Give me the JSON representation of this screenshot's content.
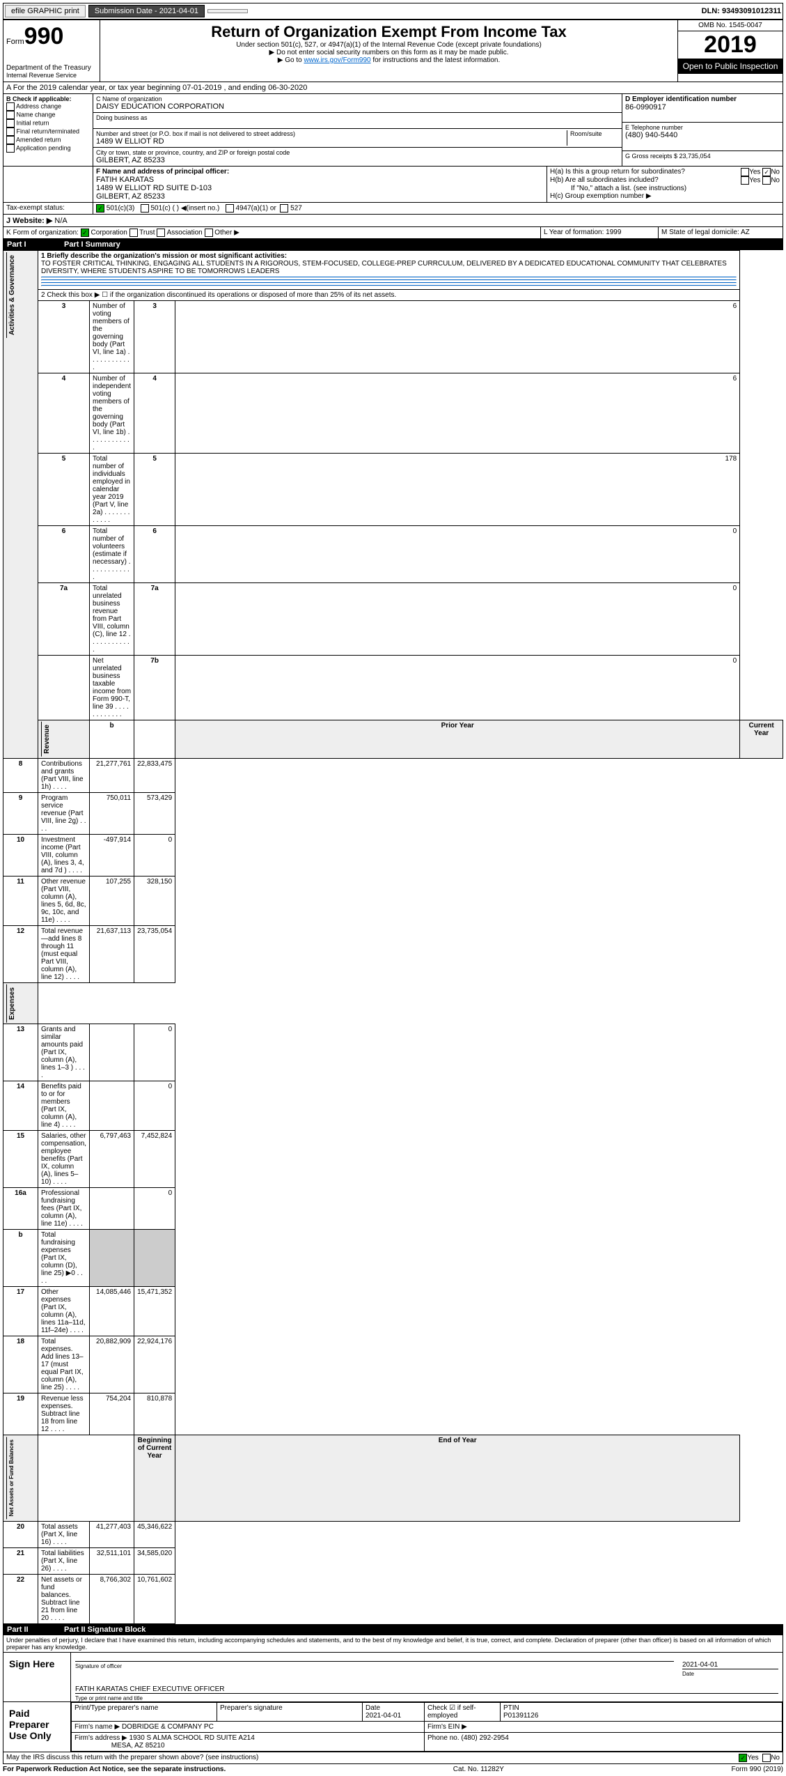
{
  "topbar": {
    "efile": "efile GRAPHIC print",
    "submission": "Submission Date - 2021-04-01",
    "dln": "DLN: 93493091012311"
  },
  "header": {
    "form_small": "Form",
    "form_big": "990",
    "dept1": "Department of the Treasury",
    "dept2": "Internal Revenue Service",
    "title": "Return of Organization Exempt From Income Tax",
    "sub1": "Under section 501(c), 527, or 4947(a)(1) of the Internal Revenue Code (except private foundations)",
    "sub2": "▶ Do not enter social security numbers on this form as it may be made public.",
    "sub3a": "▶ Go to ",
    "sub3_link": "www.irs.gov/Form990",
    "sub3b": " for instructions and the latest information.",
    "omb": "OMB No. 1545-0047",
    "year": "2019",
    "public": "Open to Public Inspection"
  },
  "period": "A For the 2019 calendar year, or tax year beginning 07-01-2019    , and ending 06-30-2020",
  "boxB": {
    "label": "B Check if applicable:",
    "addr": "Address change",
    "name": "Name change",
    "init": "Initial return",
    "final": "Final return/terminated",
    "amend": "Amended return",
    "app": "Application pending"
  },
  "boxC": {
    "label": "C Name of organization",
    "name": "DAISY EDUCATION CORPORATION",
    "dba_label": "Doing business as",
    "addr_label": "Number and street (or P.O. box if mail is not delivered to street address)",
    "addr": "1489 W ELLIOT RD",
    "room_label": "Room/suite",
    "city_label": "City or town, state or province, country, and ZIP or foreign postal code",
    "city": "GILBERT, AZ  85233"
  },
  "boxD": {
    "label": "D Employer identification number",
    "ein": "86-0990917"
  },
  "boxE": {
    "label": "E Telephone number",
    "phone": "(480) 940-5440"
  },
  "boxG": {
    "label": "G Gross receipts $ 23,735,054"
  },
  "boxF": {
    "label": "F  Name and address of principal officer:",
    "name": "FATIH KARATAS",
    "addr1": "1489 W ELLIOT RD SUITE D-103",
    "addr2": "GILBERT, AZ  85233"
  },
  "boxH": {
    "ha": "H(a)  Is this a group return for subordinates?",
    "hb": "H(b)  Are all subordinates included?",
    "hnote": "If \"No,\" attach a list. (see instructions)",
    "hc": "H(c)  Group exemption number ▶",
    "yes": "Yes",
    "no": "No"
  },
  "taxexempt": {
    "label": "Tax-exempt status:",
    "a": "501(c)(3)",
    "b": "501(c) (   ) ◀(insert no.)",
    "c": "4947(a)(1) or",
    "d": "527"
  },
  "boxJ": {
    "label": "J  Website: ▶",
    "val": "N/A"
  },
  "boxK": {
    "label": "K Form of organization:",
    "corp": "Corporation",
    "trust": "Trust",
    "assoc": "Association",
    "other": "Other ▶"
  },
  "boxL": {
    "label": "L Year of formation: 1999"
  },
  "boxM": {
    "label": "M State of legal domicile: AZ"
  },
  "part1": {
    "header": "Part I      Summary",
    "v1": "Activities & Governance",
    "v2": "Revenue",
    "v3": "Expenses",
    "v4": "Net Assets or Fund Balances",
    "l1a": "1  Briefly describe the organization's mission or most significant activities:",
    "l1b": "TO FOSTER CRITICAL THINKING, ENGAGING ALL STUDENTS IN A RIGOROUS, STEM-FOCUSED, COLLEGE-PREP CURRCULUM, DELIVERED BY A DEDICATED EDUCATIONAL COMMUNITY THAT CELEBRATES DIVERSITY, WHERE STUDENTS ASPIRE TO BE TOMORROWS LEADERS",
    "l2": "2   Check this box ▶ ☐  if the organization discontinued its operations or disposed of more than 25% of its net assets.",
    "rows": [
      {
        "n": "3",
        "t": "Number of voting members of the governing body (Part VI, line 1a)",
        "box": "3",
        "v": "6"
      },
      {
        "n": "4",
        "t": "Number of independent voting members of the governing body (Part VI, line 1b)",
        "box": "4",
        "v": "6"
      },
      {
        "n": "5",
        "t": "Total number of individuals employed in calendar year 2019 (Part V, line 2a)",
        "box": "5",
        "v": "178"
      },
      {
        "n": "6",
        "t": "Total number of volunteers (estimate if necessary)",
        "box": "6",
        "v": "0"
      },
      {
        "n": "7a",
        "t": "Total unrelated business revenue from Part VIII, column (C), line 12",
        "box": "7a",
        "v": "0"
      },
      {
        "n": "",
        "t": "Net unrelated business taxable income from Form 990-T, line 39",
        "box": "7b",
        "v": "0"
      }
    ],
    "hb": "b",
    "prior": "Prior Year",
    "current": "Current Year",
    "rev": [
      {
        "n": "8",
        "t": "Contributions and grants (Part VIII, line 1h)",
        "p": "21,277,761",
        "c": "22,833,475"
      },
      {
        "n": "9",
        "t": "Program service revenue (Part VIII, line 2g)",
        "p": "750,011",
        "c": "573,429"
      },
      {
        "n": "10",
        "t": "Investment income (Part VIII, column (A), lines 3, 4, and 7d )",
        "p": "-497,914",
        "c": "0"
      },
      {
        "n": "11",
        "t": "Other revenue (Part VIII, column (A), lines 5, 6d, 8c, 9c, 10c, and 11e)",
        "p": "107,255",
        "c": "328,150"
      },
      {
        "n": "12",
        "t": "Total revenue—add lines 8 through 11 (must equal Part VIII, column (A), line 12)",
        "p": "21,637,113",
        "c": "23,735,054"
      }
    ],
    "exp": [
      {
        "n": "13",
        "t": "Grants and similar amounts paid (Part IX, column (A), lines 1–3 )",
        "p": "",
        "c": "0"
      },
      {
        "n": "14",
        "t": "Benefits paid to or for members (Part IX, column (A), line 4)",
        "p": "",
        "c": "0"
      },
      {
        "n": "15",
        "t": "Salaries, other compensation, employee benefits (Part IX, column (A), lines 5–10)",
        "p": "6,797,463",
        "c": "7,452,824"
      },
      {
        "n": "16a",
        "t": "Professional fundraising fees (Part IX, column (A), line 11e)",
        "p": "",
        "c": "0"
      },
      {
        "n": "b",
        "t": "Total fundraising expenses (Part IX, column (D), line 25) ▶0",
        "p": "shade",
        "c": "shade"
      },
      {
        "n": "17",
        "t": "Other expenses (Part IX, column (A), lines 11a–11d, 11f–24e)",
        "p": "14,085,446",
        "c": "15,471,352"
      },
      {
        "n": "18",
        "t": "Total expenses. Add lines 13–17 (must equal Part IX, column (A), line 25)",
        "p": "20,882,909",
        "c": "22,924,176"
      },
      {
        "n": "19",
        "t": "Revenue less expenses. Subtract line 18 from line 12",
        "p": "754,204",
        "c": "810,878"
      }
    ],
    "begin": "Beginning of Current Year",
    "end": "End of Year",
    "net": [
      {
        "n": "20",
        "t": "Total assets (Part X, line 16)",
        "p": "41,277,403",
        "c": "45,346,622"
      },
      {
        "n": "21",
        "t": "Total liabilities (Part X, line 26)",
        "p": "32,511,101",
        "c": "34,585,020"
      },
      {
        "n": "22",
        "t": "Net assets or fund balances. Subtract line 21 from line 20",
        "p": "8,766,302",
        "c": "10,761,602"
      }
    ]
  },
  "part2": {
    "header": "Part II      Signature Block",
    "decl": "Under penalties of perjury, I declare that I have examined this return, including accompanying schedules and statements, and to the best of my knowledge and belief, it is true, correct, and complete. Declaration of preparer (other than officer) is based on all information of which preparer has any knowledge.",
    "sign_here": "Sign Here",
    "sig_officer": "Signature of officer",
    "date": "Date",
    "date_v": "2021-04-01",
    "officer_name": "FATIH KARATAS  CHIEF EXECUTIVE OFFICER",
    "type_name": "Type or print name and title",
    "paid": "Paid Preparer Use Only",
    "pt_name_l": "Print/Type preparer's name",
    "pt_sig_l": "Preparer's signature",
    "pt_date_l": "Date",
    "pt_date_v": "2021-04-01",
    "pt_check": "Check ☑  if self-employed",
    "ptin_l": "PTIN",
    "ptin_v": "P01391126",
    "firm_name_l": "Firm's name    ▶",
    "firm_name": "DOBRIDGE & COMPANY PC",
    "firm_ein_l": "Firm's EIN ▶",
    "firm_addr_l": "Firm's address ▶",
    "firm_addr1": "1930 S ALMA SCHOOL RD SUITE A214",
    "firm_addr2": "MESA, AZ  85210",
    "phone_l": "Phone no. (480) 292-2954",
    "discuss": "May the IRS discuss this return with the preparer shown above? (see instructions)",
    "yes": "Yes",
    "no": "No"
  },
  "footer": {
    "left": "For Paperwork Reduction Act Notice, see the separate instructions.",
    "mid": "Cat. No. 11282Y",
    "right": "Form 990 (2019)"
  }
}
